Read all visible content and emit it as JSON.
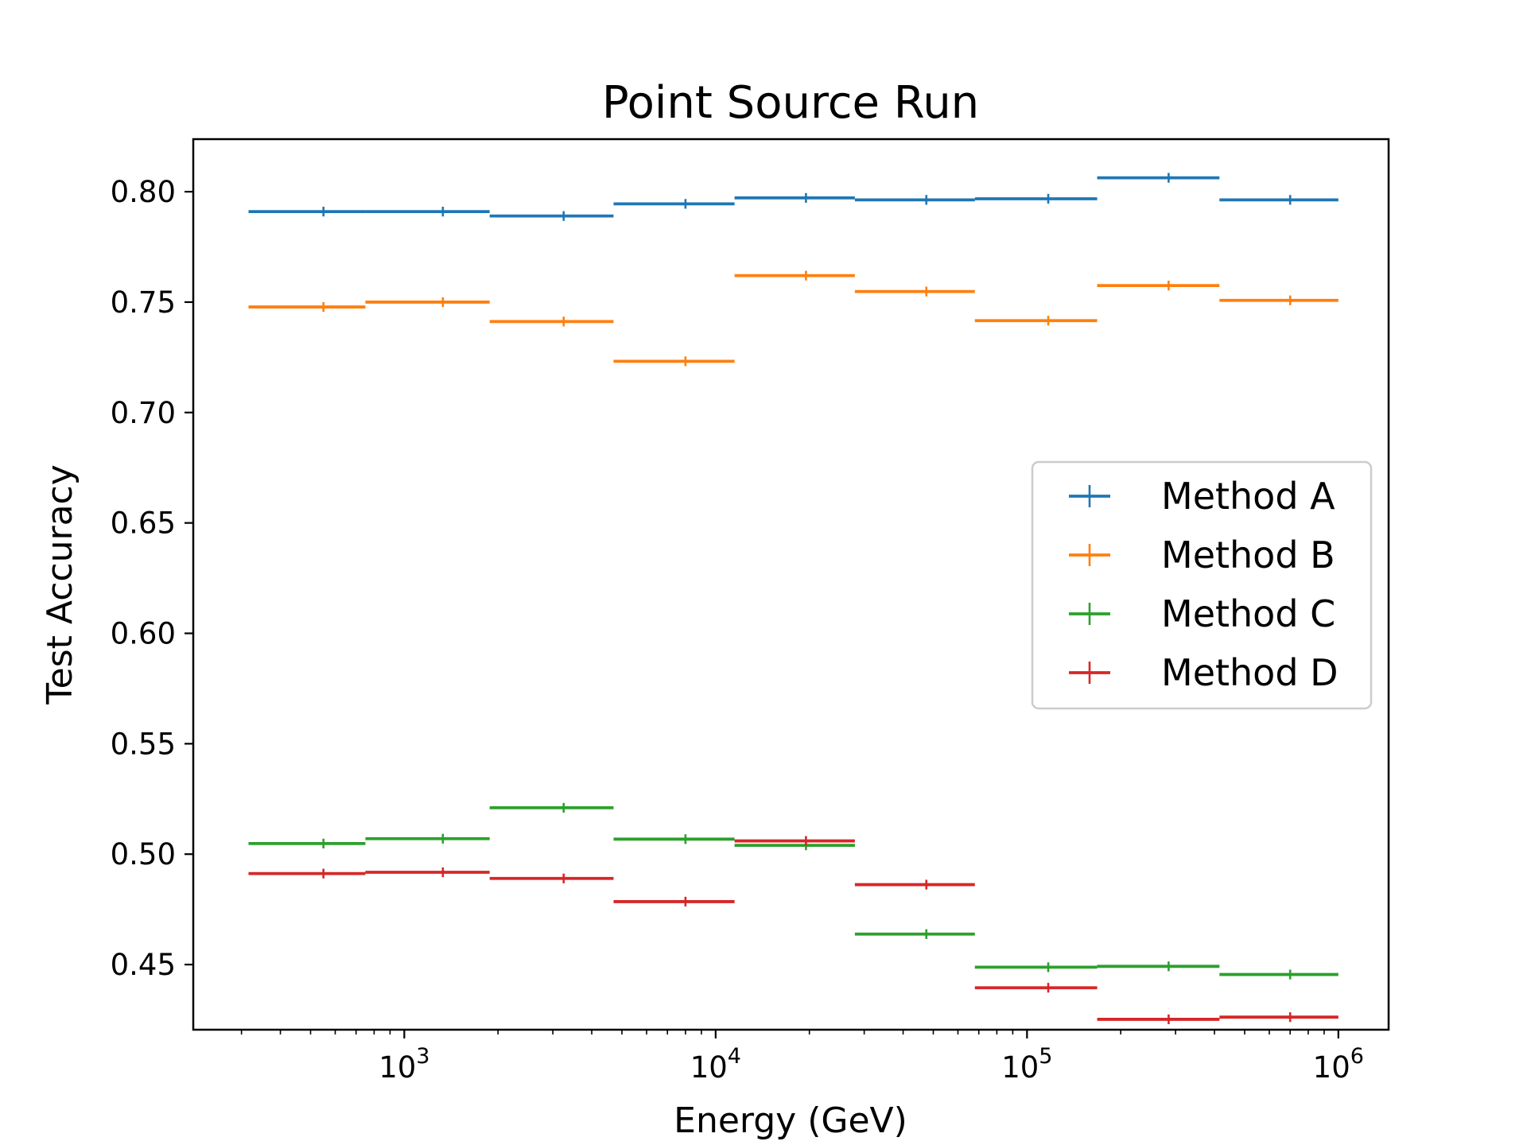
{
  "chart_data": {
    "type": "scatter",
    "title": "Point Source Run",
    "xlabel": "Energy (GeV)",
    "ylabel": "Test Accuracy",
    "xscale": "log",
    "xlim": [
      210,
      1450000
    ],
    "ylim": [
      0.4205,
      0.8238
    ],
    "grid": false,
    "legend_position": "center-right",
    "x_tick_labels": [
      {
        "value": 1000,
        "base": "10",
        "exp": "3"
      },
      {
        "value": 10000,
        "base": "10",
        "exp": "4"
      },
      {
        "value": 100000,
        "base": "10",
        "exp": "5"
      },
      {
        "value": 1000000,
        "base": "10",
        "exp": "6"
      }
    ],
    "y_ticks": [
      0.45,
      0.5,
      0.55,
      0.6,
      0.65,
      0.7,
      0.75,
      0.8
    ],
    "y_tick_labels": [
      "0.45",
      "0.50",
      "0.55",
      "0.60",
      "0.65",
      "0.70",
      "0.75",
      "0.80"
    ],
    "bin_edges": [
      316,
      750,
      1880,
      4700,
      11500,
      28000,
      68000,
      168000,
      415000,
      1000000
    ],
    "bin_centers": [
      550,
      1330,
      3250,
      8000,
      19500,
      47500,
      117000,
      285000,
      700000
    ],
    "series": [
      {
        "name": "Method A",
        "color": "#1f77b4",
        "values": [
          0.791,
          0.791,
          0.789,
          0.7945,
          0.7972,
          0.7963,
          0.7968,
          0.8063,
          0.7963
        ]
      },
      {
        "name": "Method B",
        "color": "#ff7f0e",
        "values": [
          0.7478,
          0.75,
          0.7412,
          0.7232,
          0.762,
          0.7548,
          0.7416,
          0.7575,
          0.7508
        ]
      },
      {
        "name": "Method C",
        "color": "#2ca02c",
        "values": [
          0.5048,
          0.507,
          0.521,
          0.5068,
          0.504,
          0.4638,
          0.4488,
          0.4492,
          0.4455
        ]
      },
      {
        "name": "Method D",
        "color": "#d62728",
        "values": [
          0.4912,
          0.4918,
          0.489,
          0.4785,
          0.506,
          0.4862,
          0.4395,
          0.4252,
          0.4262
        ]
      }
    ]
  }
}
